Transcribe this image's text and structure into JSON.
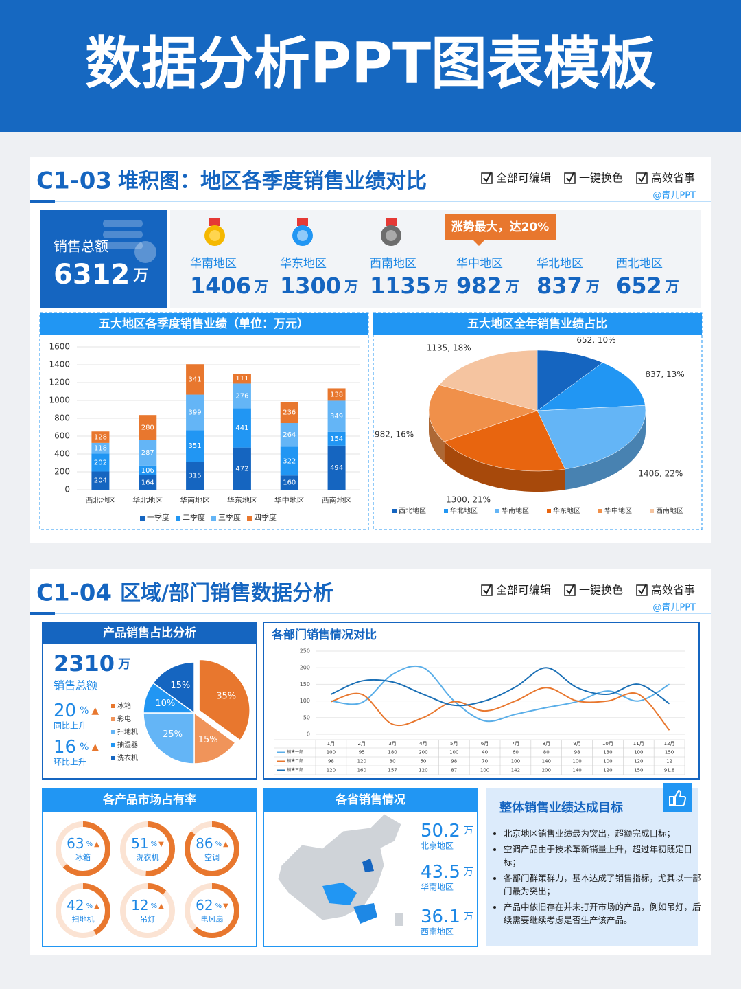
{
  "header": {
    "title": "数据分析PPT图表模板"
  },
  "sections": [
    {
      "code": "C1-03",
      "title": "堆积图：地区各季度销售业绩对比",
      "features": [
        "全部可编辑",
        "一键换色",
        "高效省事"
      ],
      "credit": "@青儿PPT",
      "kpi": {
        "label": "销售总额",
        "value": 6312,
        "unit": "万"
      },
      "callout": "涨势最大，达20%",
      "regions": [
        {
          "name": "华南地区",
          "value": 1406,
          "unit": "万"
        },
        {
          "name": "华东地区",
          "value": 1300,
          "unit": "万"
        },
        {
          "name": "西南地区",
          "value": 1135,
          "unit": "万"
        },
        {
          "name": "华中地区",
          "value": 982,
          "unit": "万"
        },
        {
          "name": "华北地区",
          "value": 837,
          "unit": "万"
        },
        {
          "name": "西北地区",
          "value": 652,
          "unit": "万"
        }
      ]
    },
    {
      "code": "C1-04",
      "title": "区域/部门销售数据分析",
      "features": [
        "全部可编辑",
        "一键换色",
        "高效省事"
      ],
      "credit": "@青儿PPT",
      "kpi": {
        "value": 2310,
        "unit": "万",
        "label": "销售总额"
      },
      "changes": [
        {
          "value": 20,
          "unit": "%",
          "trend": "▲",
          "label": "同比上升"
        },
        {
          "value": 16,
          "unit": "%",
          "trend": "▲",
          "label": "环比上升"
        }
      ],
      "provinces_title": "各省销售情况",
      "provinces": [
        {
          "value": 50.2,
          "unit": "万",
          "label": "北京地区"
        },
        {
          "value": 43.5,
          "unit": "万",
          "label": "华南地区"
        },
        {
          "value": 36.1,
          "unit": "万",
          "label": "西南地区"
        }
      ],
      "summary": {
        "title": "整体销售业绩达成目标",
        "items": [
          "北京地区销售业绩最为突出，超额完成目标；",
          "空调产品由于技术革新销量上升，超过年初既定目标；",
          "各部门群策群力，基本达成了销售指标，尤其以一部门最为突出；",
          "产品中依旧存在并未打开市场的产品，例如吊灯，后续需要继续考虑是否生产该产品。"
        ]
      }
    }
  ],
  "chart_data": [
    {
      "type": "bar",
      "stacked": true,
      "title": "五大地区各季度销售业绩（单位：万元）",
      "categories": [
        "西北地区",
        "华北地区",
        "华南地区",
        "华东地区",
        "华中地区",
        "西南地区"
      ],
      "series": [
        {
          "name": "一季度",
          "color": "#1565c0",
          "values": [
            204,
            164,
            315,
            472,
            160,
            494
          ]
        },
        {
          "name": "二季度",
          "color": "#2196f3",
          "values": [
            202,
            106,
            351,
            441,
            322,
            154
          ]
        },
        {
          "name": "三季度",
          "color": "#64b5f6",
          "values": [
            118,
            287,
            399,
            276,
            264,
            349
          ]
        },
        {
          "name": "四季度",
          "color": "#e8772e",
          "values": [
            128,
            280,
            341,
            111,
            236,
            138
          ]
        }
      ],
      "ylim": [
        0,
        1600
      ],
      "yticks": [
        0,
        200,
        400,
        600,
        800,
        1000,
        1200,
        1400,
        1600
      ],
      "grid": true
    },
    {
      "type": "pie",
      "title": "五大地区全年销售业绩占比",
      "categories": [
        "西北地区",
        "华北地区",
        "华南地区",
        "华东地区",
        "华中地区",
        "西南地区"
      ],
      "values": [
        652,
        837,
        1406,
        1300,
        982,
        1135
      ],
      "value_labels": [
        "652, 10%",
        "837, 13%",
        "1406, 22%",
        "1300, 21%",
        "982, 16%",
        "1135, 18%"
      ],
      "colors": [
        "#1565c0",
        "#2196f3",
        "#64b5f6",
        "#e8650f",
        "#f0904a",
        "#f5c4a0"
      ]
    },
    {
      "type": "pie",
      "title": "产品销售占比分析",
      "categories": [
        "冰箱",
        "彩电",
        "扫地机",
        "抽湿器",
        "洗衣机"
      ],
      "values": [
        35,
        15,
        25,
        10,
        15
      ],
      "value_labels": [
        "35%",
        "15%",
        "25%",
        "10%",
        "15%"
      ],
      "colors": [
        "#e8772e",
        "#f0945a",
        "#64b5f6",
        "#2196f3",
        "#1565c0"
      ]
    },
    {
      "type": "line",
      "title": "各部门销售情况对比",
      "categories": [
        "1月",
        "2月",
        "3月",
        "4月",
        "5月",
        "6月",
        "7月",
        "8月",
        "9月",
        "10月",
        "11月",
        "12月"
      ],
      "series": [
        {
          "name": "销售一部",
          "color": "#5aaee8",
          "values": [
            100,
            95,
            180,
            200,
            100,
            40,
            60,
            80,
            98,
            130,
            100,
            150
          ]
        },
        {
          "name": "销售二部",
          "color": "#e8772e",
          "values": [
            98,
            120,
            30,
            50,
            98,
            70,
            100,
            140,
            100,
            100,
            120,
            12
          ]
        },
        {
          "name": "销售三部",
          "color": "#1a6fb5",
          "values": [
            120,
            160,
            157,
            120,
            87,
            100,
            142,
            200,
            140,
            120,
            150,
            91.8
          ]
        }
      ],
      "ylim": [
        0,
        250
      ],
      "yticks": [
        0,
        50,
        100,
        150,
        200,
        250
      ],
      "grid": true
    },
    {
      "type": "donut",
      "title": "各产品市场占有率",
      "categories": [
        "冰箱",
        "洗衣机",
        "空调",
        "扫地机",
        "吊灯",
        "电风扇"
      ],
      "values": [
        63,
        51,
        86,
        42,
        12,
        62
      ],
      "unit": "%",
      "trends": [
        "▲",
        "▼",
        "▲",
        "▲",
        "▲",
        "▼"
      ],
      "color": "#e8772e",
      "track_color": "#fbe3d3"
    }
  ]
}
